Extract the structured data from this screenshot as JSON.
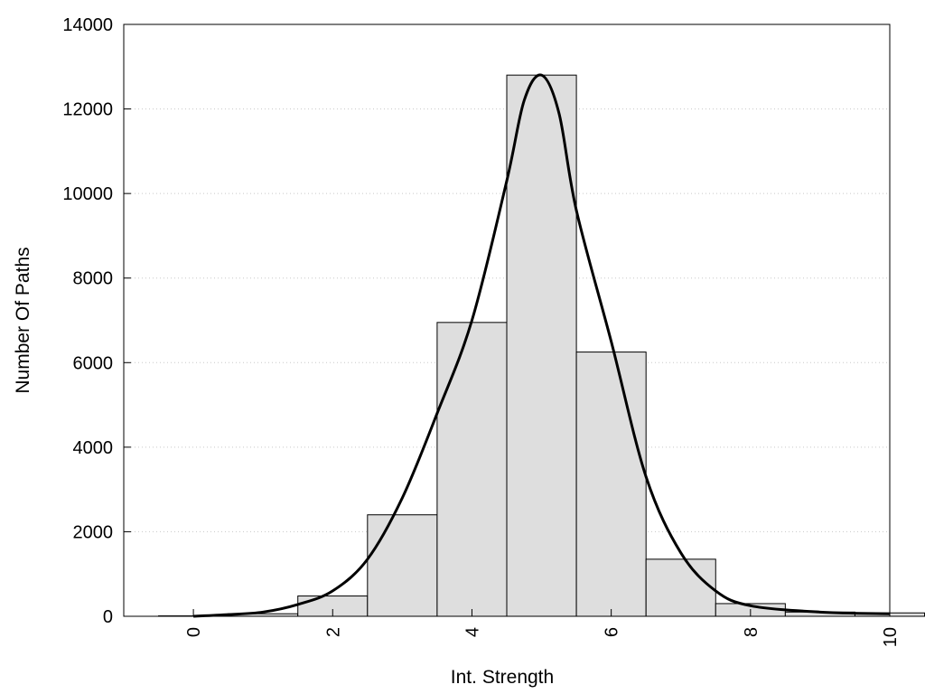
{
  "chart_data": {
    "type": "bar",
    "title": "",
    "xlabel": "Int. Strength",
    "ylabel": "Number Of Paths",
    "xlim": [
      -1,
      10
    ],
    "ylim": [
      0,
      14000
    ],
    "x_ticks": [
      "0",
      "2",
      "4",
      "6",
      "8",
      "10"
    ],
    "y_ticks": [
      "0",
      "2000",
      "4000",
      "6000",
      "8000",
      "10000",
      "12000",
      "14000"
    ],
    "grid": "horizontal dotted",
    "bins": {
      "centers": [
        0,
        1,
        2,
        3,
        4,
        5,
        6,
        7,
        8,
        9,
        10
      ],
      "values": [
        10,
        60,
        480,
        2400,
        6950,
        12800,
        6250,
        1350,
        300,
        100,
        80
      ]
    },
    "bar_color": "#dedede",
    "curve": {
      "type": "line",
      "x": [
        0,
        0.5,
        1,
        1.5,
        2,
        2.5,
        3,
        3.5,
        4,
        4.5,
        4.75,
        5,
        5.25,
        5.5,
        6,
        6.5,
        7,
        7.5,
        8,
        9,
        10
      ],
      "y": [
        0,
        40,
        100,
        280,
        600,
        1350,
        2800,
        4800,
        7000,
        10300,
        12200,
        12800,
        11900,
        9600,
        6500,
        3300,
        1500,
        600,
        250,
        100,
        60
      ]
    }
  }
}
